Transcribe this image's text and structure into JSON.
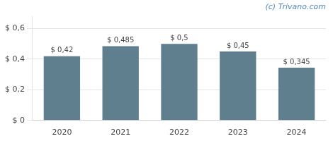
{
  "chart_data": {
    "type": "bar",
    "annotations": [
      "(c) Trivano.com"
    ],
    "categories": [
      "2020",
      "2021",
      "2022",
      "2023",
      "2024"
    ],
    "values": [
      0.42,
      0.485,
      0.5,
      0.45,
      0.345
    ],
    "value_labels": [
      "$ 0,42",
      "$ 0,485",
      "$ 0,5",
      "$ 0,45",
      "$ 0,345"
    ],
    "data_labels": true,
    "color": "#5f7f8f",
    "ylim": [
      0,
      0.68
    ],
    "yticks": [
      {
        "value": 0,
        "label": "$ 0"
      },
      {
        "value": 0.2,
        "label": "$ 0,2"
      },
      {
        "value": 0.4,
        "label": "$ 0,4"
      },
      {
        "value": 0.6,
        "label": "$ 0,6"
      }
    ],
    "grid": true
  }
}
